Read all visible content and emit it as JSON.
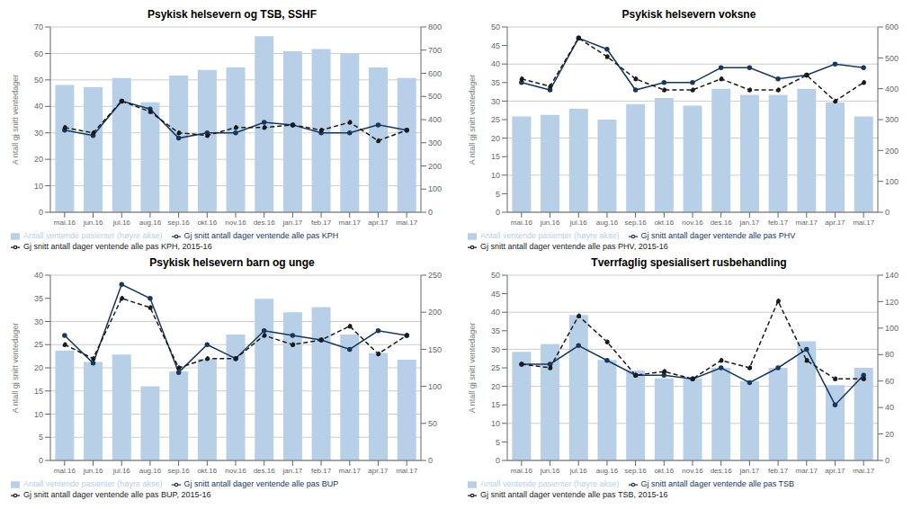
{
  "chart_data": [
    {
      "type": "bar",
      "title": "Psykisk helsevern og TSB, SSHF",
      "categories": [
        "mai.16",
        "jun.16",
        "jul.16",
        "aug.16",
        "sep.16",
        "okt.16",
        "nov.16",
        "des.16",
        "jan.17",
        "feb.17",
        "mar.17",
        "apr.17",
        "mai.17"
      ],
      "ylabel": "A ntall gj snitt ventedager",
      "ylim": [
        0,
        70
      ],
      "yticks": [
        0,
        10,
        20,
        30,
        40,
        50,
        60,
        70
      ],
      "y2lim": [
        0,
        800
      ],
      "y2ticks": [
        0,
        100,
        200,
        300,
        400,
        500,
        600,
        700,
        800
      ],
      "grid": true,
      "legend": "bottom",
      "series": [
        {
          "name": "Antall ventende pasienter (høyre akse)",
          "type": "bar",
          "axis": "y2",
          "color": "#b8cfe8",
          "values": [
            550,
            540,
            580,
            475,
            590,
            615,
            625,
            760,
            695,
            705,
            685,
            625,
            580
          ]
        },
        {
          "name": "Gj snitt antall dager ventende alle pas KPH",
          "type": "line",
          "color": "#17375e",
          "line_style": "solid",
          "marker": "circle",
          "values": [
            31,
            29,
            42,
            39,
            28,
            30,
            30,
            34,
            33,
            30,
            30,
            33,
            31
          ]
        },
        {
          "name": "Gj snitt antall dager ventende alle pas KPH, 2015-16",
          "type": "line",
          "color": "#1a1a1a",
          "line_style": "dashed",
          "marker": "circle",
          "values": [
            32,
            30,
            42,
            38,
            30,
            29,
            32,
            32,
            33,
            31,
            34,
            27,
            31
          ]
        }
      ]
    },
    {
      "type": "bar",
      "title": "Psykisk helsevern voksne",
      "categories": [
        "mai.16",
        "jun.16",
        "jul.16",
        "aug.16",
        "sep.16",
        "okt.16",
        "nov.16",
        "des.16",
        "jan.17",
        "feb.17",
        "mar.17",
        "apr.17",
        "mai.17"
      ],
      "ylabel": "A ntall gj snitt ventedager",
      "ylim": [
        0,
        50
      ],
      "yticks": [
        0,
        5,
        10,
        15,
        20,
        25,
        30,
        35,
        40,
        45,
        50
      ],
      "y2lim": [
        0,
        600
      ],
      "y2ticks": [
        0,
        100,
        200,
        300,
        400,
        500,
        600
      ],
      "grid": true,
      "legend": "bottom",
      "series": [
        {
          "name": "Antall ventende pasienter (høyre akse)",
          "type": "bar",
          "axis": "y2",
          "color": "#b8cfe8",
          "values": [
            310,
            315,
            335,
            300,
            350,
            370,
            345,
            400,
            380,
            380,
            400,
            355,
            310
          ]
        },
        {
          "name": "Gj snitt antall dager ventende alle pas PHV",
          "type": "line",
          "color": "#17375e",
          "line_style": "solid",
          "marker": "circle",
          "values": [
            35,
            33,
            47,
            44,
            33,
            35,
            35,
            39,
            39,
            36,
            37,
            40,
            39
          ]
        },
        {
          "name": "Gj snitt antall dager ventende alle pas PHV, 2015-16",
          "type": "line",
          "color": "#1a1a1a",
          "line_style": "dashed",
          "marker": "circle",
          "values": [
            36,
            34,
            47,
            42,
            36,
            33,
            33,
            36,
            33,
            33,
            37,
            30,
            35
          ]
        }
      ]
    },
    {
      "type": "bar",
      "title": "Psykisk helsevern barn og unge",
      "categories": [
        "mai.16",
        "jun.16",
        "jul.16",
        "aug.16",
        "sep.16",
        "okt.16",
        "nov.16",
        "des.16",
        "jan.17",
        "feb.17",
        "mar.17",
        "apr.17",
        "mai.17"
      ],
      "ylabel": "A ntall gj snitt ventedager",
      "ylim": [
        0,
        40
      ],
      "yticks": [
        0,
        5,
        10,
        15,
        20,
        25,
        30,
        35,
        40
      ],
      "y2lim": [
        0,
        250
      ],
      "y2ticks": [
        0,
        50,
        100,
        150,
        200,
        250
      ],
      "grid": true,
      "legend": "bottom",
      "series": [
        {
          "name": "Antall ventende pasienter (høyre akse)",
          "type": "bar",
          "axis": "y2",
          "color": "#b8cfe8",
          "values": [
            148,
            133,
            143,
            100,
            120,
            137,
            170,
            218,
            200,
            207,
            170,
            145,
            136
          ]
        },
        {
          "name": "Gj snitt antall dager ventende alle pas BUP",
          "type": "line",
          "color": "#17375e",
          "line_style": "solid",
          "marker": "circle",
          "values": [
            27,
            21,
            38,
            35,
            19,
            25,
            22,
            28,
            27,
            26,
            24,
            28,
            27
          ]
        },
        {
          "name": "Gj snitt antall dager ventende alle pas BUP, 2015-16",
          "type": "line",
          "color": "#1a1a1a",
          "line_style": "dashed",
          "marker": "circle",
          "values": [
            25,
            22,
            35,
            33,
            20,
            22,
            22,
            27,
            25,
            26,
            29,
            23,
            27
          ]
        }
      ]
    },
    {
      "type": "bar",
      "title": "Tverrfaglig spesialisert rusbehandling",
      "categories": [
        "mai.16",
        "jun.16",
        "jul.16",
        "aug.16",
        "sep.16",
        "okt.16",
        "nov.16",
        "des.16",
        "jan.17",
        "feb.17",
        "mar.17",
        "apr.17",
        "mai.17"
      ],
      "ylabel": "A ntall gj snitt ventedager",
      "ylim": [
        0,
        50
      ],
      "yticks": [
        0,
        5,
        10,
        15,
        20,
        25,
        30,
        35,
        40,
        45,
        50
      ],
      "y2lim": [
        0,
        140
      ],
      "y2ticks": [
        0,
        20,
        40,
        60,
        80,
        100,
        120,
        140
      ],
      "grid": true,
      "legend": "bottom",
      "series": [
        {
          "name": "Antall ventende pasienter (høyre akse)",
          "type": "bar",
          "axis": "y2",
          "color": "#b8cfe8",
          "values": [
            82,
            88,
            110,
            76,
            68,
            62,
            62,
            70,
            60,
            70,
            90,
            57,
            70
          ]
        },
        {
          "name": "Gj snitt antall dager ventende alle pas TSB",
          "type": "line",
          "color": "#17375e",
          "line_style": "solid",
          "marker": "circle",
          "values": [
            26,
            26,
            31,
            27,
            23,
            23,
            22,
            25,
            21,
            25,
            30,
            15,
            23
          ]
        },
        {
          "name": "Gj snitt antall dager ventende alle pas TSB, 2015-16",
          "type": "line",
          "color": "#1a1a1a",
          "line_style": "dashed",
          "marker": "circle",
          "values": [
            26,
            25,
            39,
            32,
            23,
            24,
            22,
            27,
            25,
            43,
            27,
            22,
            22
          ]
        }
      ]
    }
  ]
}
